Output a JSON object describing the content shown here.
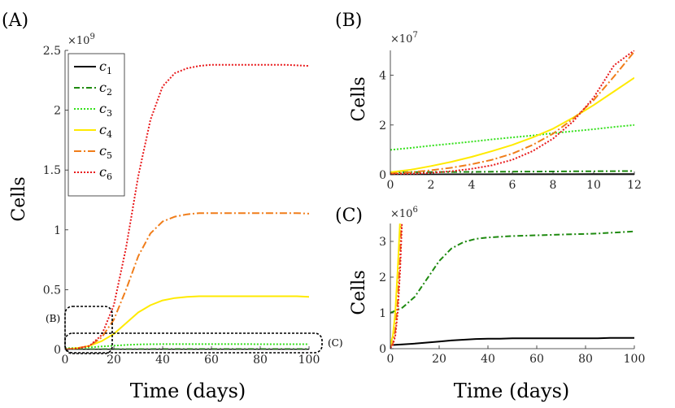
{
  "figure": {
    "legend_entries": [
      {
        "key": "c1",
        "sym": "c",
        "sub": "1",
        "color": "#000000",
        "dash": ""
      },
      {
        "key": "c2",
        "sym": "c",
        "sub": "2",
        "color": "#1e8a0f",
        "dash": "7,3,2,3"
      },
      {
        "key": "c3",
        "sym": "c",
        "sub": "3",
        "color": "#33e01a",
        "dash": "2,2"
      },
      {
        "key": "c4",
        "sym": "c",
        "sub": "4",
        "color": "#ffea00",
        "dash": ""
      },
      {
        "key": "c5",
        "sym": "c",
        "sub": "5",
        "color": "#f07d1a",
        "dash": "9,3,2,3"
      },
      {
        "key": "c6",
        "sym": "c",
        "sub": "6",
        "color": "#e8191b",
        "dash": "2,2"
      }
    ],
    "region_labels": {
      "B": "(B)",
      "C": "(C)"
    }
  },
  "chart_data": [
    {
      "panel": "(A)",
      "type": "line",
      "title": "",
      "xlabel": "Time (days)",
      "ylabel": "Cells",
      "multiplier_base": "×10",
      "multiplier_exp": "9",
      "xlim": [
        0,
        100
      ],
      "ylim": [
        0,
        2.5
      ],
      "xticks": [
        0,
        20,
        40,
        60,
        80,
        100
      ],
      "xtick_labels": [
        "0",
        "20",
        "40",
        "60",
        "80",
        "100"
      ],
      "yticks": [
        0,
        0.5,
        1,
        1.5,
        2,
        2.5
      ],
      "ytick_labels": [
        "0",
        "0.5",
        "1",
        "1.5",
        "2",
        "2.5"
      ],
      "legend": "top-left",
      "x": [
        0,
        5,
        10,
        15,
        20,
        25,
        30,
        35,
        40,
        45,
        50,
        55,
        60,
        65,
        70,
        75,
        80,
        85,
        90,
        95,
        100
      ],
      "series": [
        {
          "name": "c1",
          "values": [
            0.0001,
            0.0001,
            0.0002,
            0.0002,
            0.0002,
            0.0002,
            0.0003,
            0.0003,
            0.0003,
            0.0003,
            0.0003,
            0.0003,
            0.0003,
            0.0003,
            0.0003,
            0.0003,
            0.0003,
            0.0003,
            0.0003,
            0.0003,
            0.0003
          ]
        },
        {
          "name": "c2",
          "values": [
            0.001,
            0.0012,
            0.0015,
            0.002,
            0.0025,
            0.0028,
            0.003,
            0.003,
            0.0031,
            0.0031,
            0.0031,
            0.0032,
            0.0032,
            0.0032,
            0.0032,
            0.0032,
            0.0032,
            0.0032,
            0.0033,
            0.0033,
            0.0033
          ]
        },
        {
          "name": "c3",
          "values": [
            0.01,
            0.013,
            0.018,
            0.025,
            0.032,
            0.038,
            0.042,
            0.044,
            0.045,
            0.045,
            0.045,
            0.045,
            0.045,
            0.045,
            0.045,
            0.045,
            0.044,
            0.044,
            0.044,
            0.044,
            0.044
          ]
        },
        {
          "name": "c4",
          "values": [
            0.001,
            0.012,
            0.03,
            0.07,
            0.13,
            0.22,
            0.31,
            0.37,
            0.41,
            0.43,
            0.44,
            0.445,
            0.445,
            0.445,
            0.445,
            0.445,
            0.445,
            0.445,
            0.445,
            0.445,
            0.44
          ]
        },
        {
          "name": "c5",
          "values": [
            0.0005,
            0.01,
            0.03,
            0.1,
            0.25,
            0.5,
            0.78,
            0.97,
            1.07,
            1.11,
            1.13,
            1.14,
            1.14,
            1.14,
            1.14,
            1.14,
            1.14,
            1.14,
            1.14,
            1.14,
            1.135
          ]
        },
        {
          "name": "c6",
          "values": [
            0.0002,
            0.008,
            0.03,
            0.12,
            0.37,
            0.85,
            1.45,
            1.92,
            2.2,
            2.31,
            2.35,
            2.37,
            2.38,
            2.38,
            2.38,
            2.38,
            2.38,
            2.38,
            2.38,
            2.375,
            2.37
          ]
        }
      ]
    },
    {
      "panel": "(B)",
      "type": "line",
      "title": "",
      "xlabel": "",
      "ylabel": "Cells",
      "multiplier_base": "×10",
      "multiplier_exp": "7",
      "xlim": [
        0,
        12
      ],
      "ylim": [
        0,
        5
      ],
      "xticks": [
        0,
        2,
        4,
        6,
        8,
        10,
        12
      ],
      "xtick_labels": [
        "0",
        "2",
        "4",
        "6",
        "8",
        "10",
        "12"
      ],
      "yticks": [
        0,
        2,
        4
      ],
      "ytick_labels": [
        "0",
        "2",
        "4"
      ],
      "x": [
        0,
        1,
        2,
        3,
        4,
        5,
        6,
        7,
        8,
        9,
        10,
        11,
        12
      ],
      "series": [
        {
          "name": "c1",
          "values": [
            0.01,
            0.012,
            0.013,
            0.015,
            0.016,
            0.017,
            0.018,
            0.019,
            0.02,
            0.021,
            0.022,
            0.023,
            0.024
          ]
        },
        {
          "name": "c2",
          "values": [
            0.1,
            0.104,
            0.108,
            0.112,
            0.116,
            0.12,
            0.124,
            0.128,
            0.132,
            0.136,
            0.14,
            0.145,
            0.15
          ]
        },
        {
          "name": "c3",
          "values": [
            1.0,
            1.08,
            1.17,
            1.25,
            1.33,
            1.42,
            1.5,
            1.58,
            1.67,
            1.75,
            1.83,
            1.92,
            2.0
          ]
        },
        {
          "name": "c4",
          "values": [
            0.1,
            0.2,
            0.35,
            0.52,
            0.72,
            0.95,
            1.2,
            1.5,
            1.85,
            2.3,
            2.8,
            3.35,
            3.9
          ]
        },
        {
          "name": "c5",
          "values": [
            0.05,
            0.1,
            0.18,
            0.28,
            0.42,
            0.6,
            0.85,
            1.2,
            1.65,
            2.25,
            3.0,
            3.95,
            4.95
          ]
        },
        {
          "name": "c6",
          "values": [
            0.02,
            0.04,
            0.08,
            0.14,
            0.24,
            0.38,
            0.6,
            0.95,
            1.45,
            2.15,
            3.1,
            4.4,
            5.0
          ]
        }
      ]
    },
    {
      "panel": "(C)",
      "type": "line",
      "title": "",
      "xlabel": "Time (days)",
      "ylabel": "Cells",
      "multiplier_base": "×10",
      "multiplier_exp": "6",
      "xlim": [
        0,
        100
      ],
      "ylim": [
        0,
        3.5
      ],
      "xticks": [
        0,
        20,
        40,
        60,
        80,
        100
      ],
      "xtick_labels": [
        "0",
        "20",
        "40",
        "60",
        "80",
        "100"
      ],
      "yticks": [
        0,
        1,
        2,
        3
      ],
      "ytick_labels": [
        "0",
        "1",
        "2",
        "3"
      ],
      "x": [
        0,
        5,
        10,
        15,
        20,
        25,
        30,
        35,
        40,
        45,
        50,
        55,
        60,
        65,
        70,
        75,
        80,
        85,
        90,
        95,
        100
      ],
      "series": [
        {
          "name": "c1",
          "values": [
            0.1,
            0.12,
            0.14,
            0.17,
            0.2,
            0.23,
            0.25,
            0.27,
            0.28,
            0.28,
            0.29,
            0.29,
            0.29,
            0.29,
            0.29,
            0.29,
            0.29,
            0.29,
            0.3,
            0.3,
            0.3
          ]
        },
        {
          "name": "c2",
          "values": [
            1.0,
            1.15,
            1.45,
            1.95,
            2.45,
            2.8,
            2.98,
            3.07,
            3.11,
            3.13,
            3.15,
            3.16,
            3.17,
            3.18,
            3.19,
            3.2,
            3.21,
            3.22,
            3.24,
            3.26,
            3.28
          ]
        },
        {
          "name": "c4",
          "x": [
            0,
            1,
            2,
            3,
            4
          ],
          "values": [
            0.1,
            0.35,
            1.0,
            2.2,
            3.6
          ]
        },
        {
          "name": "c5",
          "x": [
            0,
            1,
            2,
            3,
            4,
            4.6
          ],
          "values": [
            0.05,
            0.15,
            0.5,
            1.3,
            2.6,
            3.6
          ]
        },
        {
          "name": "c6",
          "x": [
            0,
            1,
            2,
            3,
            4,
            4.8
          ],
          "values": [
            0.02,
            0.1,
            0.35,
            1.0,
            2.2,
            3.6
          ]
        }
      ]
    }
  ]
}
